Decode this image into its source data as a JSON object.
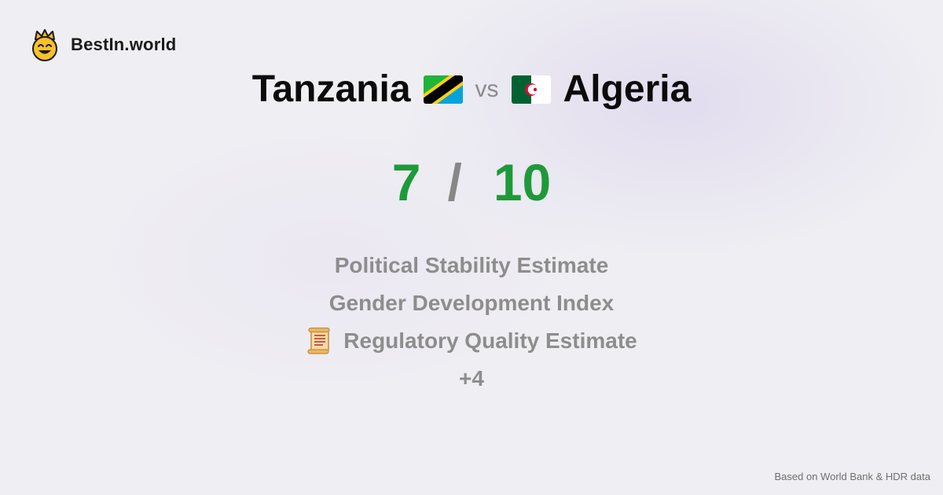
{
  "brand": {
    "name": "BestIn.world",
    "logo_icon": "smiling-crown-face-icon"
  },
  "comparison": {
    "left_country": "Tanzania",
    "left_flag": "tanzania-flag-icon",
    "vs_label": "vs",
    "right_country": "Algeria",
    "right_flag": "algeria-flag-icon"
  },
  "score": {
    "left": "7",
    "separator": "/",
    "right": "10"
  },
  "metrics": [
    {
      "label": "Political Stability Estimate"
    },
    {
      "label": "Gender Development Index"
    },
    {
      "label": "Regulatory Quality Estimate",
      "icon": "scroll-icon"
    },
    {
      "label": "+4"
    }
  ],
  "footer": {
    "source": "Based on World Bank & HDR data"
  },
  "colors": {
    "score_green": "#1e9a3a",
    "separator_gray": "#878787",
    "metric_gray": "#8d8d8d",
    "background": "#efeff3"
  }
}
